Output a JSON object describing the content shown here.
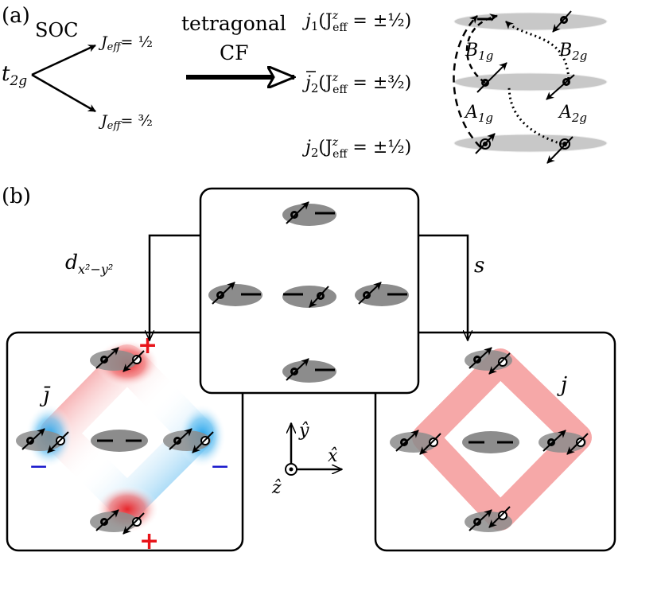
{
  "panel_a": {
    "label": "(a)",
    "t2g": "t",
    "t2g_sub": "2g",
    "soc": "SOC",
    "jeff_half_prefix": "J",
    "jeff_sub": "eff",
    "jeff_half_value": "= ½",
    "jeff_threehalf_value": "= ³⁄₂",
    "tetragonal": "tetragonal",
    "cf": "CF",
    "levels": [
      {
        "name": "j",
        "sub": "1",
        "bar": "",
        "value": "(J",
        "sup_z": "z",
        "sub_eff": "eff",
        "tail": " = ±½)"
      },
      {
        "name": "j",
        "sub": "2",
        "bar": "¯",
        "value": "(J",
        "sup_z": "z",
        "sub_eff": "eff",
        "tail": " = ±³⁄₂)"
      },
      {
        "name": "j",
        "sub": "2",
        "bar": "",
        "value": "(J",
        "sup_z": "z",
        "sub_eff": "eff",
        "tail": " = ±½)"
      }
    ],
    "transitions": [
      {
        "name": "B",
        "sub": "1g"
      },
      {
        "name": "B",
        "sub": "2g"
      },
      {
        "name": "A",
        "sub": "1g"
      },
      {
        "name": "A",
        "sub": "2g"
      }
    ]
  },
  "panel_b": {
    "label": "(b)",
    "left_arrow_label": "d",
    "left_arrow_sub": "x²−y²",
    "right_arrow_label": "s",
    "left_panel_symbol": "j̄",
    "right_panel_symbol": "j",
    "plus": "+",
    "minus": "−",
    "axis_y": "ŷ",
    "axis_x": "x̂",
    "axis_z": "ẑ"
  },
  "colors": {
    "orbital_gray": "#8c8c8c",
    "light_gray": "#c8c8c8",
    "red": "#e8262b",
    "blue": "#2aa6ea",
    "pink": "#f5a3a3",
    "sign_red": "#e8141a",
    "sign_blue": "#1a1acc"
  }
}
